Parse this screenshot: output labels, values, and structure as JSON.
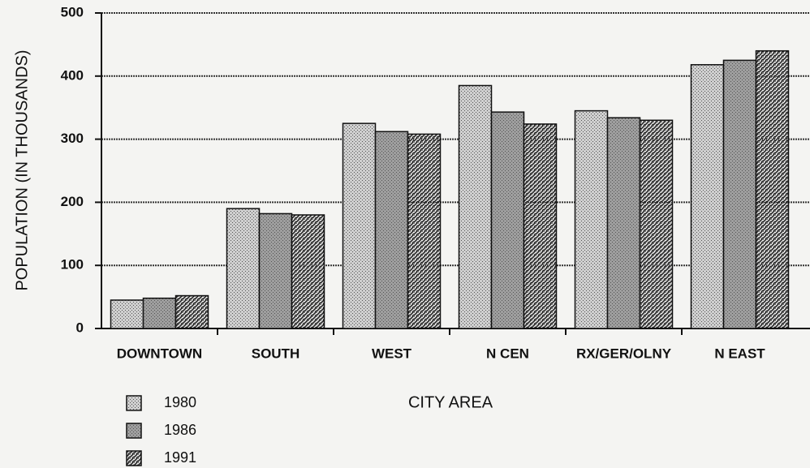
{
  "chart_data": {
    "type": "bar",
    "x_label": "CITY AREA",
    "y_label": "POPULATION (IN THOUSANDS)",
    "categories": [
      "DOWNTOWN",
      "SOUTH",
      "WEST",
      "N  CEN",
      "RX/GER/OLNY",
      "N EAST"
    ],
    "series": [
      {
        "name": "1980",
        "color": "#cfcfcf",
        "pattern": "dots",
        "values": [
          45,
          190,
          325,
          385,
          345,
          418
        ]
      },
      {
        "name": "1986",
        "color": "#9e9e9e",
        "pattern": "dots",
        "values": [
          48,
          182,
          312,
          343,
          334,
          425
        ]
      },
      {
        "name": "1991",
        "color": "#222222",
        "pattern": "hatch",
        "values": [
          52,
          180,
          308,
          324,
          330,
          440
        ]
      }
    ],
    "ylim": [
      0,
      500
    ],
    "yticks": [
      0,
      100,
      200,
      300,
      400,
      500
    ],
    "grid": true
  }
}
